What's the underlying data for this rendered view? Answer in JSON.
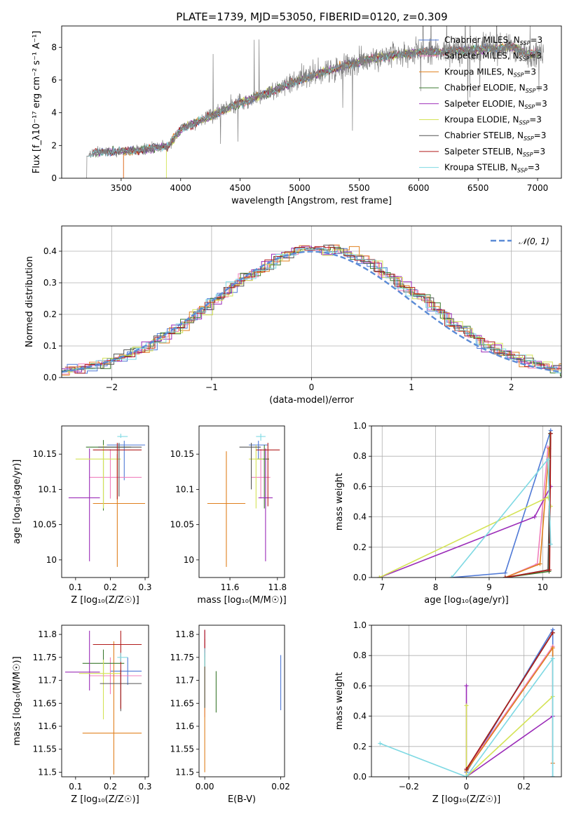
{
  "figure": {
    "title": "PLATE=1739, MJD=53050, FIBERID=0120, z=0.309"
  },
  "colors": {
    "series": [
      "#4f79d6",
      "#f07fbd",
      "#e0801e",
      "#3d7a30",
      "#9b2cb8",
      "#d4e356",
      "#555555",
      "#b11b1b",
      "#7ed9e3"
    ],
    "data": "#7f7f7f",
    "normal": "#5b8bd6",
    "grid": "#b0b0b0"
  },
  "chart_data": [
    {
      "id": "spectrum",
      "type": "line",
      "xlabel": "wavelength [Angstrom, rest frame]",
      "ylabel": "Flux [f_λ10⁻¹⁷ erg cm⁻² s⁻¹ A⁻¹]",
      "xlim": [
        3000,
        7200
      ],
      "ylim": [
        0,
        9.3
      ],
      "xticks": [
        3500,
        4000,
        4500,
        5000,
        5500,
        6000,
        6500,
        7000
      ],
      "yticks": [
        0,
        2,
        4,
        6,
        8
      ],
      "grid": false,
      "legend_position": "upper-right",
      "continuum": {
        "x": [
          3210,
          3300,
          3500,
          3700,
          3900,
          4000,
          4200,
          4500,
          4800,
          5000,
          5300,
          5600,
          6000,
          6400,
          6800,
          6900,
          7050
        ],
        "y": [
          1.4,
          1.6,
          1.65,
          1.75,
          2.0,
          3.0,
          3.6,
          4.6,
          5.4,
          6.0,
          6.7,
          7.3,
          7.7,
          7.8,
          8.0,
          7.6,
          7.7
        ]
      },
      "series": [
        {
          "name": "Chabrier MILES, N_SSP=3"
        },
        {
          "name": "Salpeter MILES, N_SSP=3"
        },
        {
          "name": "Kroupa MILES, N_SSP=3"
        },
        {
          "name": "Chabrier ELODIE, N_SSP=3"
        },
        {
          "name": "Salpeter ELODIE, N_SSP=3"
        },
        {
          "name": "Kroupa ELODIE, N_SSP=3"
        },
        {
          "name": "Chabrier STELIB, N_SSP=3"
        },
        {
          "name": "Salpeter STELIB, N_SSP=3"
        },
        {
          "name": "Kroupa STELIB, N_SSP=3"
        }
      ]
    },
    {
      "id": "residuals",
      "type": "line",
      "xlabel": "(data-model)/error",
      "ylabel": "Normed distribution",
      "xlim": [
        -2.5,
        2.5
      ],
      "ylim": [
        0,
        0.48
      ],
      "xticks": [
        -2,
        -1,
        0,
        1,
        2
      ],
      "yticks": [
        0.0,
        0.1,
        0.2,
        0.3,
        0.4
      ],
      "grid": true,
      "legend": "𝒩(0, 1)",
      "legend_position": "upper-right",
      "normal_curve": {
        "mu": 0,
        "sigma": 1
      }
    },
    {
      "id": "age-vs-Z",
      "type": "scatter",
      "xlabel": "Z [log₁₀(Z/Z☉)]",
      "ylabel": "age  [log₁₀(age/yr)]",
      "xlim": [
        0.06,
        0.31
      ],
      "ylim": [
        9.975,
        10.19
      ],
      "xticks": [
        0.1,
        0.2,
        0.3
      ],
      "yticks": [
        10.0,
        10.05,
        10.1,
        10.15
      ],
      "grid": false,
      "points": [
        {
          "x": 0.24,
          "xerr": [
            0.05,
            0.06
          ],
          "y": 10.163,
          "yerr": [
            0.05,
            0.006
          ]
        },
        {
          "x": 0.2,
          "xerr": [
            0.06,
            0.09
          ],
          "y": 10.117,
          "yerr": [
            0.03,
            0.04
          ]
        },
        {
          "x": 0.22,
          "xerr": [
            0.07,
            0.08
          ],
          "y": 10.08,
          "yerr": [
            0.09,
            0.07
          ]
        },
        {
          "x": 0.18,
          "xerr": [
            0.05,
            0.08
          ],
          "y": 10.16,
          "yerr": [
            0.09,
            0.01
          ]
        },
        {
          "x": 0.14,
          "xerr": [
            0.06,
            0.03
          ],
          "y": 10.088,
          "yerr": [
            0.09,
            0.07
          ]
        },
        {
          "x": 0.18,
          "xerr": [
            0.08,
            0.05
          ],
          "y": 10.143,
          "yerr": [
            0.07,
            0.02
          ]
        },
        {
          "x": 0.225,
          "xerr": [
            0.06,
            0.065
          ],
          "y": 10.16,
          "yerr": [
            0.07,
            0.006
          ]
        },
        {
          "x": 0.22,
          "xerr": [
            0.07,
            0.07
          ],
          "y": 10.156,
          "yerr": [
            0.07,
            0.01
          ]
        },
        {
          "x": 0.23,
          "xerr": [
            0.01,
            0.02
          ],
          "y": 10.175,
          "yerr": [
            0.002,
            0.004
          ]
        }
      ]
    },
    {
      "id": "age-vs-mass",
      "type": "scatter",
      "xlabel": "mass [log₁₀(M/M☉)]",
      "ylabel": "",
      "xlim": [
        11.47,
        11.83
      ],
      "ylim": [
        9.975,
        10.19
      ],
      "xticks": [
        11.6,
        11.8
      ],
      "yticks": [
        10.0,
        10.05,
        10.1,
        10.15
      ],
      "grid": false,
      "points": [
        {
          "x": 11.72,
          "xerr": [
            0.04,
            0.04
          ],
          "y": 10.163,
          "yerr": [
            0.02,
            0.006
          ]
        },
        {
          "x": 11.73,
          "xerr": [
            0.04,
            0.04
          ],
          "y": 10.117,
          "yerr": [
            0.03,
            0.04
          ]
        },
        {
          "x": 11.585,
          "xerr": [
            0.08,
            0.08
          ],
          "y": 10.08,
          "yerr": [
            0.09,
            0.074
          ]
        },
        {
          "x": 11.745,
          "xerr": [
            0.03,
            0.02
          ],
          "y": 10.143,
          "yerr": [
            0.07,
            0.02
          ]
        },
        {
          "x": 11.75,
          "xerr": [
            0.03,
            0.03
          ],
          "y": 10.088,
          "yerr": [
            0.09,
            0.07
          ]
        },
        {
          "x": 11.71,
          "xerr": [
            0.03,
            0.03
          ],
          "y": 10.143,
          "yerr": [
            0.07,
            0.02
          ]
        },
        {
          "x": 11.69,
          "xerr": [
            0.05,
            0.04
          ],
          "y": 10.16,
          "yerr": [
            0.06,
            0.006
          ]
        },
        {
          "x": 11.76,
          "xerr": [
            0.05,
            0.05
          ],
          "y": 10.156,
          "yerr": [
            0.08,
            0.01
          ]
        },
        {
          "x": 11.73,
          "xerr": [
            0.02,
            0.02
          ],
          "y": 10.175,
          "yerr": [
            0.006,
            0.004
          ]
        }
      ]
    },
    {
      "id": "weight-vs-age",
      "type": "line",
      "xlabel": "age  [log₁₀(age/yr)]",
      "ylabel": "mass weight",
      "xlim": [
        6.8,
        10.35
      ],
      "ylim": [
        0,
        1.0
      ],
      "xticks": [
        7,
        8,
        9,
        10
      ],
      "yticks": [
        0.0,
        0.2,
        0.4,
        0.6,
        0.8,
        1.0
      ],
      "grid": true,
      "series": [
        {
          "x": [
            8.3,
            9.3,
            10.15
          ],
          "y": [
            0.0,
            0.03,
            0.97
          ]
        },
        {
          "x": [
            9.3,
            9.9,
            10.1
          ],
          "y": [
            0.0,
            0.09,
            0.86
          ]
        },
        {
          "x": [
            9.3,
            9.95,
            10.12
          ],
          "y": [
            0.0,
            0.09,
            0.85
          ]
        },
        {
          "x": [
            9.3,
            10.12,
            10.14
          ],
          "y": [
            0.0,
            0.04,
            0.95
          ]
        },
        {
          "x": [
            6.95,
            9.85,
            10.15
          ],
          "y": [
            0.0,
            0.4,
            0.6
          ]
        },
        {
          "x": [
            6.95,
            10.1,
            10.15
          ],
          "y": [
            0.0,
            0.53,
            0.47
          ]
        },
        {
          "x": [
            9.3,
            10.1,
            10.15
          ],
          "y": [
            0.0,
            0.05,
            0.95
          ]
        },
        {
          "x": [
            9.3,
            10.13,
            10.15
          ],
          "y": [
            0.0,
            0.05,
            0.95
          ]
        },
        {
          "x": [
            8.3,
            10.1,
            10.15
          ],
          "y": [
            0.0,
            0.78,
            0.22
          ]
        }
      ]
    },
    {
      "id": "mass-vs-Z",
      "type": "scatter",
      "xlabel": "Z [log₁₀(Z/Z☉)]",
      "ylabel": "mass [log₁₀(M/M☉)]",
      "xlim": [
        0.06,
        0.31
      ],
      "ylim": [
        11.49,
        11.82
      ],
      "xticks": [
        0.1,
        0.2,
        0.3
      ],
      "yticks": [
        11.5,
        11.55,
        11.6,
        11.65,
        11.7,
        11.75,
        11.8
      ],
      "grid": false,
      "points": [
        {
          "x": 0.25,
          "xerr": [
            0.05,
            0.04
          ],
          "y": 11.72,
          "yerr": [
            0.03,
            0.03
          ]
        },
        {
          "x": 0.2,
          "xerr": [
            0.06,
            0.09
          ],
          "y": 11.71,
          "yerr": [
            0.04,
            0.04
          ]
        },
        {
          "x": 0.21,
          "xerr": [
            0.09,
            0.08
          ],
          "y": 11.585,
          "yerr": [
            0.09,
            0.2
          ]
        },
        {
          "x": 0.18,
          "xerr": [
            0.06,
            0.06
          ],
          "y": 11.737,
          "yerr": [
            0.03,
            0.03
          ]
        },
        {
          "x": 0.14,
          "xerr": [
            0.07,
            0.03
          ],
          "y": 11.718,
          "yerr": [
            0.04,
            0.09
          ]
        },
        {
          "x": 0.18,
          "xerr": [
            0.07,
            0.05
          ],
          "y": 11.715,
          "yerr": [
            0.1,
            0.03
          ]
        },
        {
          "x": 0.23,
          "xerr": [
            0.06,
            0.06
          ],
          "y": 11.693,
          "yerr": [
            0.06,
            0.03
          ]
        },
        {
          "x": 0.23,
          "xerr": [
            0.08,
            0.06
          ],
          "y": 11.778,
          "yerr": [
            0.14,
            0.03
          ]
        },
        {
          "x": 0.23,
          "xerr": [
            0.01,
            0.02
          ],
          "y": 11.75,
          "yerr": [
            0.01,
            0.01
          ]
        }
      ]
    },
    {
      "id": "mass-vs-EBV",
      "type": "scatter",
      "xlabel": "E(B-V)",
      "ylabel": "",
      "xlim": [
        -0.0015,
        0.021
      ],
      "ylim": [
        11.49,
        11.82
      ],
      "xticks": [
        0.0,
        0.02
      ],
      "yticks": [
        11.5,
        11.55,
        11.6,
        11.65,
        11.7,
        11.75,
        11.8
      ],
      "grid": false,
      "points": [
        {
          "x": 0.02,
          "y": 11.695,
          "yerr": [
            0.06,
            0.06
          ]
        },
        {
          "x": 0.0,
          "y": 11.7,
          "yerr": [
            0.08,
            0.08
          ]
        },
        {
          "x": 0.0,
          "y": 11.59,
          "yerr": [
            0.09,
            0.2
          ]
        },
        {
          "x": 0.003,
          "y": 11.675,
          "yerr": [
            0.045,
            0.045
          ]
        },
        {
          "x": 0.0,
          "y": 11.78,
          "yerr": [
            0.03,
            0.03
          ]
        },
        {
          "x": 0.0,
          "y": 11.7,
          "yerr": [
            0.06,
            0.06
          ]
        },
        {
          "x": 0.0,
          "y": 11.7,
          "yerr": [
            0.06,
            0.06
          ]
        },
        {
          "x": 0.0,
          "y": 11.79,
          "yerr": [
            0.03,
            0.02
          ]
        },
        {
          "x": 0.0,
          "y": 11.75,
          "yerr": [
            0.02,
            0.02
          ]
        }
      ]
    },
    {
      "id": "weight-vs-Z",
      "type": "line",
      "xlabel": "Z [log₁₀(Z/Z☉)]",
      "ylabel": "mass weight",
      "xlim": [
        -0.33,
        0.33
      ],
      "ylim": [
        0,
        1.0
      ],
      "xticks": [
        -0.2,
        0.0,
        0.2
      ],
      "yticks": [
        0.0,
        0.2,
        0.4,
        0.6,
        0.8,
        1.0
      ],
      "grid": true,
      "series": [
        {
          "x": [
            0.0,
            0.3,
            0.3
          ],
          "y": [
            0.03,
            0.97,
            0.0
          ]
        },
        {
          "x": [
            0.0,
            0.3,
            0.3
          ],
          "y": [
            0.05,
            0.86,
            0.09
          ]
        },
        {
          "x": [
            0.0,
            0.3,
            0.3
          ],
          "y": [
            0.04,
            0.85,
            0.09
          ]
        },
        {
          "x": [
            0.0,
            0.3
          ],
          "y": [
            0.05,
            0.95
          ]
        },
        {
          "x": [
            0.0,
            0.0,
            0.3
          ],
          "y": [
            0.6,
            0.0,
            0.4
          ]
        },
        {
          "x": [
            0.0,
            0.0,
            0.3
          ],
          "y": [
            0.47,
            0.0,
            0.53
          ]
        },
        {
          "x": [
            0.0,
            0.3
          ],
          "y": [
            0.05,
            0.95
          ]
        },
        {
          "x": [
            0.0,
            0.3
          ],
          "y": [
            0.05,
            0.95
          ]
        },
        {
          "x": [
            -0.3,
            0.0,
            0.3,
            0.3
          ],
          "y": [
            0.22,
            0.0,
            0.78,
            0.0
          ]
        }
      ]
    }
  ]
}
